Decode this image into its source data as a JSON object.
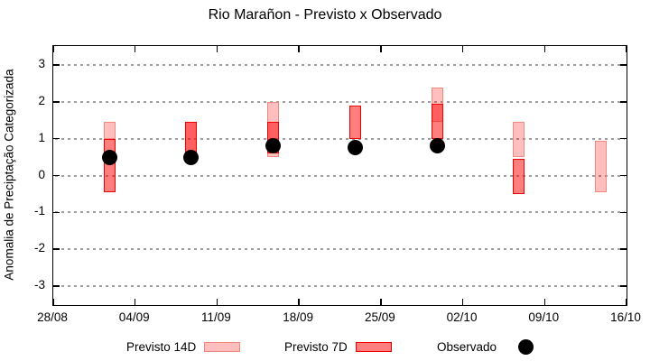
{
  "title": "Rio Marañon - Previsto x Observado",
  "chart_data": {
    "type": "bar",
    "title": "Rio Marañon - Previsto x Observado",
    "xlabel": "",
    "ylabel": "Anomalia de Preciptação Categorizada",
    "ylim": [
      -3.5,
      3.5
    ],
    "y_ticks": [
      3,
      2,
      1,
      0,
      -1,
      -2,
      -3
    ],
    "x_range_days": 49,
    "x_ticks": [
      {
        "day": 0,
        "label": "28/08"
      },
      {
        "day": 7,
        "label": "04/09"
      },
      {
        "day": 14,
        "label": "11/09"
      },
      {
        "day": 21,
        "label": "18/09"
      },
      {
        "day": 28,
        "label": "25/09"
      },
      {
        "day": 35,
        "label": "02/10"
      },
      {
        "day": 42,
        "label": "09/10"
      },
      {
        "day": 49,
        "label": "16/10"
      }
    ],
    "grid": true,
    "legend_position": "bottom",
    "series": [
      {
        "name": "Previsto 14D",
        "type": "range-bar"
      },
      {
        "name": "Previsto 7D",
        "type": "range-bar"
      },
      {
        "name": "Observado",
        "type": "point"
      }
    ],
    "bars": [
      {
        "date": "02/09",
        "day": 4.8,
        "previsto_14d": [
          1.0,
          1.45
        ],
        "previsto_7d": [
          -0.45,
          1.0
        ],
        "observado": 0.5
      },
      {
        "date": "09/09",
        "day": 11.8,
        "previsto_14d": [
          0.5,
          1.45
        ],
        "previsto_7d": [
          0.5,
          1.45
        ],
        "observado": 0.5
      },
      {
        "date": "16/09",
        "day": 18.8,
        "previsto_14d": [
          0.5,
          2.0
        ],
        "previsto_7d": [
          0.6,
          1.45
        ],
        "observado": 0.8
      },
      {
        "date": "23/09",
        "day": 25.8,
        "previsto_14d": null,
        "previsto_7d": [
          1.0,
          1.9
        ],
        "observado": 0.75
      },
      {
        "date": "30/09",
        "day": 32.8,
        "previsto_14d": [
          1.45,
          2.4
        ],
        "previsto_7d": [
          1.0,
          1.95
        ],
        "observado": 0.8
      },
      {
        "date": "07/10",
        "day": 39.8,
        "previsto_14d": [
          0.5,
          1.45
        ],
        "previsto_7d": [
          -0.5,
          0.45
        ],
        "observado": null
      },
      {
        "date": "14/10",
        "day": 46.8,
        "previsto_14d": [
          -0.45,
          0.95
        ],
        "previsto_7d": null,
        "observado": null
      }
    ]
  },
  "legend": {
    "previsto_14d": "Previsto 14D",
    "previsto_7d": "Previsto 7D",
    "observado": "Observado"
  },
  "colors": {
    "previsto_14d_fill": "rgba(255,0,0,0.25)",
    "previsto_14d_stroke": "#f0897b",
    "previsto_7d_fill": "rgba(255,0,0,0.5)",
    "previsto_7d_stroke": "#ed0000",
    "observado": "#000000",
    "grid": "#9e9e9e",
    "axis": "#000000"
  }
}
